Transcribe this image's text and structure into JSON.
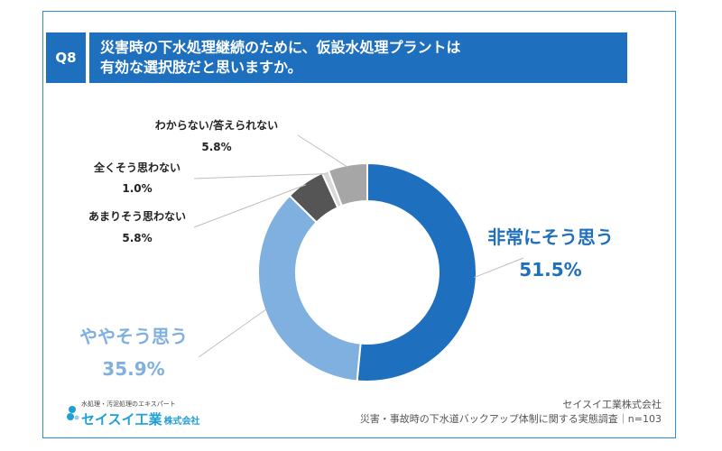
{
  "question": {
    "badge": "Q8",
    "title_line1": "災害時の下水処理継続のために、仮設水処理プラントは",
    "title_line2": "有効な選択肢だと思いますか。"
  },
  "chart_data": {
    "type": "pie",
    "donut": true,
    "title": "災害時の下水処理継続のために、仮設水処理プラントは有効な選択肢だと思いますか。",
    "unit": "%",
    "slices": [
      {
        "label": "非常にそう思う",
        "value": 51.5,
        "value_label": "51.5%",
        "color": "#1f6fbf",
        "label_color": "#1f6fbf"
      },
      {
        "label": "ややそう思う",
        "value": 35.9,
        "value_label": "35.9%",
        "color": "#7fb0df",
        "label_color": "#7fb0df"
      },
      {
        "label": "あまりそう思わない",
        "value": 5.8,
        "value_label": "5.8%",
        "color": "#555555",
        "label_color": "#222222"
      },
      {
        "label": "全くそう思わない",
        "value": 1.0,
        "value_label": "1.0%",
        "color": "#d9d9d9",
        "label_color": "#222222"
      },
      {
        "label": "わからない/答えられない",
        "value": 5.8,
        "value_label": "5.8%",
        "color": "#a6a6a6",
        "label_color": "#222222"
      }
    ]
  },
  "footer": {
    "company": "セイスイ工業株式会社",
    "survey": "災害・事故時の下水道バックアップ体制に関する実態調査｜n=103"
  },
  "logo": {
    "tagline": "水処理・汚泥処理のエキスパート",
    "name": "セイスイ工業",
    "suffix": "株式会社"
  }
}
